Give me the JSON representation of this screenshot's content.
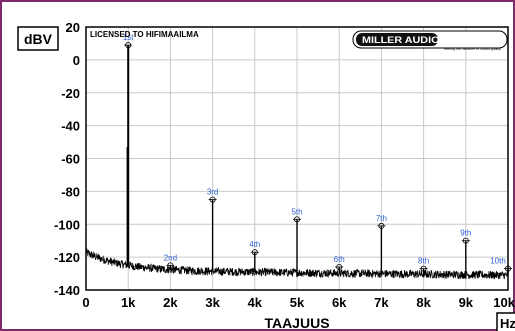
{
  "chart_data": {
    "type": "line",
    "title": "",
    "xlabel": "TAAJUUS",
    "ylabel": "dBV",
    "x_unit": "Hz",
    "xlim": [
      0,
      10000
    ],
    "ylim": [
      -140,
      20
    ],
    "grid": true,
    "x_ticks": [
      0,
      1000,
      2000,
      3000,
      4000,
      5000,
      6000,
      7000,
      8000,
      9000,
      10000
    ],
    "x_tick_labels": [
      "0",
      "1k",
      "2k",
      "3k",
      "4k",
      "5k",
      "6k",
      "7k",
      "8k",
      "9k",
      "10k"
    ],
    "y_ticks": [
      20,
      0,
      -20,
      -40,
      -60,
      -80,
      -100,
      -120,
      -140
    ],
    "y_tick_labels": [
      "20",
      "0",
      "-20",
      "-40",
      "-60",
      "-80",
      "-100",
      "-120",
      "-140"
    ],
    "license_text": "LICENSED TO HIFIMAAILMA",
    "logo": {
      "text": "MILLER AUDIO RESEARCH",
      "tagline": "Setting the measure of sound quality"
    },
    "noise_floor": {
      "start_db": -117,
      "mid_db": -128,
      "end_db": -131,
      "ripple_db": 2.5
    },
    "peaks": [
      {
        "label": "1st",
        "x": 1000,
        "y": 9
      },
      {
        "label": "2nd",
        "x": 2000,
        "y": -125
      },
      {
        "label": "3rd",
        "x": 3000,
        "y": -85
      },
      {
        "label": "4th",
        "x": 4000,
        "y": -117
      },
      {
        "label": "5th",
        "x": 5000,
        "y": -97
      },
      {
        "label": "6th",
        "x": 6000,
        "y": -126
      },
      {
        "label": "7th",
        "x": 7000,
        "y": -101
      },
      {
        "label": "8th",
        "x": 8000,
        "y": -127
      },
      {
        "label": "9th",
        "x": 9000,
        "y": -110
      },
      {
        "label": "10th",
        "x": 10000,
        "y": -127
      }
    ],
    "spur": {
      "x": 1000,
      "y": -53
    },
    "colors": {
      "frame": "#7b2a6b",
      "trace": "#000000",
      "labels": "#2f5fd0",
      "grid": "#c9c9c9"
    }
  }
}
